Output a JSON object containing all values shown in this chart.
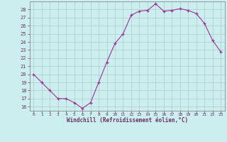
{
  "x": [
    0,
    1,
    2,
    3,
    4,
    5,
    6,
    7,
    8,
    9,
    10,
    11,
    12,
    13,
    14,
    15,
    16,
    17,
    18,
    19,
    20,
    21,
    22,
    23
  ],
  "y": [
    20,
    19,
    18,
    17,
    17,
    16.5,
    15.8,
    16.5,
    19,
    21.5,
    23.8,
    25,
    27.3,
    27.8,
    27.9,
    28.7,
    27.8,
    27.9,
    28.1,
    27.9,
    27.5,
    26.3,
    24.2,
    22.8
  ],
  "line_color": "#993399",
  "marker": "+",
  "marker_color": "#993399",
  "bg_color": "#cceeee",
  "grid_color": "#aacccc",
  "xlabel": "Windchill (Refroidissement éolien,°C)",
  "ylabel_ticks": [
    16,
    17,
    18,
    19,
    20,
    21,
    22,
    23,
    24,
    25,
    26,
    27,
    28
  ],
  "ylim": [
    15.5,
    29.0
  ],
  "xlim": [
    -0.5,
    23.5
  ],
  "xtick_labels": [
    "0",
    "1",
    "2",
    "3",
    "4",
    "5",
    "6",
    "7",
    "8",
    "9",
    "10",
    "11",
    "12",
    "13",
    "14",
    "15",
    "16",
    "17",
    "18",
    "19",
    "20",
    "21",
    "22",
    "23"
  ],
  "axis_color": "#663366",
  "tick_color": "#663366",
  "label_color": "#663366",
  "spine_color": "#888888"
}
